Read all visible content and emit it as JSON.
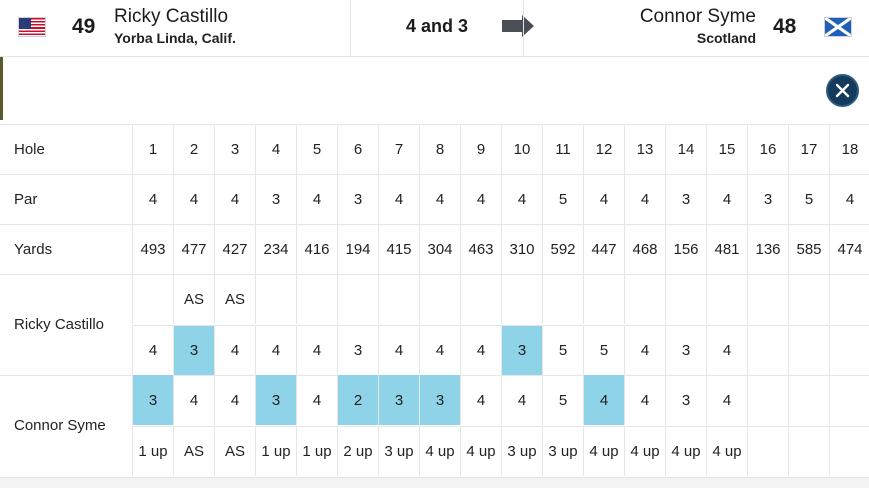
{
  "match": {
    "player1": {
      "seed": "49",
      "name": "Ricky Castillo",
      "location": "Yorba Linda, Calif.",
      "flag": "us-flag-icon"
    },
    "player2": {
      "seed": "48",
      "name": "Connor Syme",
      "location": "Scotland",
      "flag": "scotland-flag-icon"
    },
    "result": "4 and 3",
    "winner_arrow": "arrow-right-icon"
  },
  "close_icon": "close-icon",
  "colors": {
    "win_cell": "#8fd3e8",
    "close_button": "#153a5c",
    "border": "#e6e6e6"
  },
  "scorecard": {
    "labels": {
      "hole": "Hole",
      "par": "Par",
      "yards": "Yards",
      "player1": "Ricky Castillo",
      "player2": "Connor Syme"
    },
    "holes": [
      "1",
      "2",
      "3",
      "4",
      "5",
      "6",
      "7",
      "8",
      "9",
      "10",
      "11",
      "12",
      "13",
      "14",
      "15",
      "16",
      "17",
      "18"
    ],
    "par": [
      "4",
      "4",
      "4",
      "3",
      "4",
      "3",
      "4",
      "4",
      "4",
      "4",
      "5",
      "4",
      "4",
      "3",
      "4",
      "3",
      "5",
      "4"
    ],
    "yards": [
      "493",
      "477",
      "427",
      "234",
      "416",
      "194",
      "415",
      "304",
      "463",
      "310",
      "592",
      "447",
      "468",
      "156",
      "481",
      "136",
      "585",
      "474"
    ],
    "player1_status": [
      "",
      "AS",
      "AS",
      "",
      "",
      "",
      "",
      "",
      "",
      "",
      "",
      "",
      "",
      "",
      "",
      "",
      "",
      ""
    ],
    "player1_scores": [
      "4",
      "3",
      "4",
      "4",
      "4",
      "3",
      "4",
      "4",
      "4",
      "3",
      "5",
      "5",
      "4",
      "3",
      "4",
      "",
      "",
      ""
    ],
    "player1_wins": [
      false,
      true,
      false,
      false,
      false,
      false,
      false,
      false,
      false,
      true,
      false,
      false,
      false,
      false,
      false,
      false,
      false,
      false
    ],
    "player2_scores": [
      "3",
      "4",
      "4",
      "3",
      "4",
      "2",
      "3",
      "3",
      "4",
      "4",
      "5",
      "4",
      "4",
      "3",
      "4",
      "",
      "",
      ""
    ],
    "player2_wins": [
      true,
      false,
      false,
      true,
      false,
      true,
      true,
      true,
      false,
      false,
      false,
      true,
      false,
      false,
      false,
      false,
      false,
      false
    ],
    "player2_status": [
      "1 up",
      "AS",
      "AS",
      "1 up",
      "1 up",
      "2 up",
      "3 up",
      "4 up",
      "4 up",
      "3 up",
      "3 up",
      "4 up",
      "4 up",
      "4 up",
      "4 up",
      "",
      "",
      ""
    ]
  }
}
